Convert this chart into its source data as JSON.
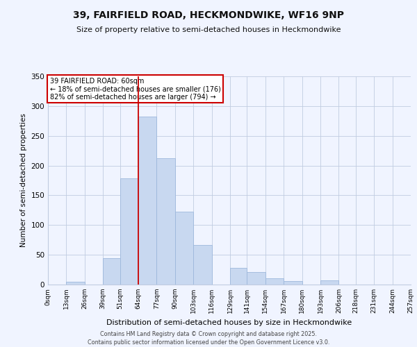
{
  "title": "39, FAIRFIELD ROAD, HECKMONDWIKE, WF16 9NP",
  "subtitle": "Size of property relative to semi-detached houses in Heckmondwike",
  "xlabel": "Distribution of semi-detached houses by size in Heckmondwike",
  "ylabel": "Number of semi-detached properties",
  "bin_edges": [
    0,
    13,
    26,
    39,
    51,
    64,
    77,
    90,
    103,
    116,
    129,
    141,
    154,
    167,
    180,
    193,
    206,
    218,
    231,
    244,
    257
  ],
  "bin_labels": [
    "0sqm",
    "13sqm",
    "26sqm",
    "39sqm",
    "51sqm",
    "64sqm",
    "77sqm",
    "90sqm",
    "103sqm",
    "116sqm",
    "129sqm",
    "141sqm",
    "154sqm",
    "167sqm",
    "180sqm",
    "193sqm",
    "206sqm",
    "218sqm",
    "231sqm",
    "244sqm",
    "257sqm"
  ],
  "counts": [
    0,
    5,
    0,
    44,
    178,
    282,
    212,
    122,
    66,
    0,
    28,
    21,
    11,
    6,
    0,
    7,
    0,
    0,
    0,
    0
  ],
  "bar_color": "#c8d8f0",
  "bar_edge_color": "#9db8dc",
  "property_line_x": 64,
  "annotation_title": "39 FAIRFIELD ROAD: 60sqm",
  "annotation_line1": "← 18% of semi-detached houses are smaller (176)",
  "annotation_line2": "82% of semi-detached houses are larger (794) →",
  "annotation_box_color": "#ffffff",
  "annotation_box_edge": "#cc0000",
  "property_line_color": "#cc0000",
  "ylim": [
    0,
    350
  ],
  "yticks": [
    0,
    50,
    100,
    150,
    200,
    250,
    300,
    350
  ],
  "footer1": "Contains HM Land Registry data © Crown copyright and database right 2025.",
  "footer2": "Contains public sector information licensed under the Open Government Licence v3.0.",
  "bg_color": "#f0f4ff",
  "grid_color": "#c0cce0"
}
